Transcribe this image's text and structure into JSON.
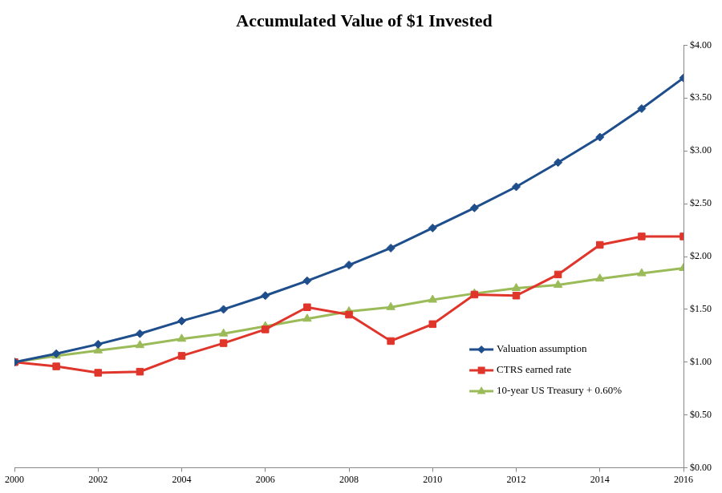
{
  "chart_data": {
    "type": "line",
    "title": "Accumulated Value of $1 Invested",
    "x": [
      2000,
      2001,
      2002,
      2003,
      2004,
      2005,
      2006,
      2007,
      2008,
      2009,
      2010,
      2011,
      2012,
      2013,
      2014,
      2015,
      2016
    ],
    "series": [
      {
        "name": "Valuation assumption",
        "color": "#1f4e8c",
        "marker": "diamond",
        "values": [
          1.0,
          1.08,
          1.17,
          1.27,
          1.39,
          1.5,
          1.63,
          1.77,
          1.92,
          2.08,
          2.27,
          2.46,
          2.66,
          2.89,
          3.13,
          3.4,
          3.69
        ]
      },
      {
        "name": "CTRS earned rate",
        "color": "#e0352b",
        "marker": "square",
        "values": [
          1.0,
          0.96,
          0.9,
          0.91,
          1.06,
          1.18,
          1.31,
          1.52,
          1.45,
          1.2,
          1.36,
          1.64,
          1.63,
          1.83,
          2.11,
          2.19,
          2.19
        ]
      },
      {
        "name": "10-year US Treasury + 0.60%",
        "color": "#9bbb59",
        "marker": "triangle",
        "values": [
          1.0,
          1.06,
          1.11,
          1.16,
          1.22,
          1.27,
          1.34,
          1.41,
          1.48,
          1.52,
          1.59,
          1.65,
          1.7,
          1.73,
          1.79,
          1.84,
          1.89
        ]
      }
    ],
    "xlim": [
      2000,
      2016
    ],
    "xticks": [
      2000,
      2002,
      2004,
      2006,
      2008,
      2010,
      2012,
      2014,
      2016
    ],
    "ylim": [
      0,
      4
    ],
    "yticks": [
      {
        "value": 0,
        "label": "$0.00"
      },
      {
        "value": 0.5,
        "label": "$0.50"
      },
      {
        "value": 1,
        "label": "$1.00"
      },
      {
        "value": 1.5,
        "label": "$1.50"
      },
      {
        "value": 2,
        "label": "$2.00"
      },
      {
        "value": 2.5,
        "label": "$2.50"
      },
      {
        "value": 3,
        "label": "$3.00"
      },
      {
        "value": 3.5,
        "label": "$3.50"
      },
      {
        "value": 4,
        "label": "$4.00"
      }
    ],
    "grid": false,
    "legend": "lower right"
  }
}
